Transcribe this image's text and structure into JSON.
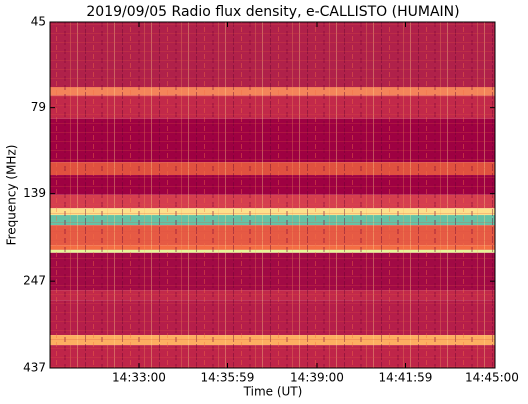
{
  "chart_data": {
    "type": "spectrogram",
    "title": "2019/09/05  Radio flux density, e-CALLISTO (HUMAIN)",
    "xlabel": "Time (UT)",
    "ylabel": "Frequency (MHz)",
    "xlim": [
      "14:30:00",
      "14:45:00"
    ],
    "xticks": [
      "14:33:00",
      "14:35:59",
      "14:39:00",
      "14:41:59",
      "14:45:00"
    ],
    "ylim": [
      45,
      437
    ],
    "yscale": "log",
    "yinverted": true,
    "yticks": [
      45,
      79,
      139,
      247,
      437
    ],
    "bands": [
      {
        "from": 45,
        "to": 69,
        "color": "#b0214a"
      },
      {
        "from": 69,
        "to": 73,
        "color": "#f4845a"
      },
      {
        "from": 73,
        "to": 85,
        "color": "#c2294a"
      },
      {
        "from": 85,
        "to": 113,
        "color": "#9e0142"
      },
      {
        "from": 113,
        "to": 123,
        "color": "#e0513f"
      },
      {
        "from": 123,
        "to": 140,
        "color": "#9e0142"
      },
      {
        "from": 140,
        "to": 153,
        "color": "#d53e4f"
      },
      {
        "from": 153,
        "to": 160,
        "color": "#fee08b"
      },
      {
        "from": 160,
        "to": 171,
        "color": "#66c2a5"
      },
      {
        "from": 171,
        "to": 195,
        "color": "#e65a44"
      },
      {
        "from": 195,
        "to": 201,
        "color": "#f46d43"
      },
      {
        "from": 201,
        "to": 205,
        "color": "#e6f598"
      },
      {
        "from": 205,
        "to": 262,
        "color": "#a10a45"
      },
      {
        "from": 262,
        "to": 280,
        "color": "#c2294a"
      },
      {
        "from": 280,
        "to": 352,
        "color": "#b51e4a"
      },
      {
        "from": 352,
        "to": 376,
        "color": "#fdae61"
      },
      {
        "from": 376,
        "to": 437,
        "color": "#bf2549"
      }
    ]
  }
}
